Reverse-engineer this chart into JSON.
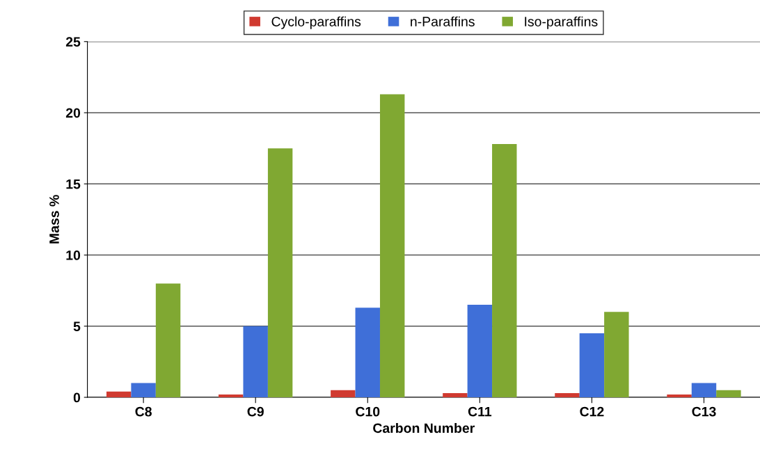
{
  "chart_data": {
    "type": "bar",
    "xlabel": "Carbon Number",
    "ylabel": "Mass %",
    "categories": [
      "C8",
      "C9",
      "C10",
      "C11",
      "C12",
      "C13"
    ],
    "series": [
      {
        "name": "Cyclo-paraffins",
        "color": "#d03a30",
        "values": [
          0.4,
          0.2,
          0.5,
          0.3,
          0.3,
          0.2
        ]
      },
      {
        "name": "n-Paraffins",
        "color": "#3f6fd8",
        "values": [
          1.0,
          5.0,
          6.3,
          6.5,
          4.5,
          1.0
        ]
      },
      {
        "name": "Iso-paraffins",
        "color": "#80a832",
        "values": [
          8.0,
          17.5,
          21.3,
          17.8,
          6.0,
          0.5
        ]
      }
    ],
    "ylim": [
      0,
      25
    ],
    "yticks": [
      0,
      5,
      10,
      15,
      20,
      25
    ],
    "grid": "y",
    "legend": "top"
  }
}
